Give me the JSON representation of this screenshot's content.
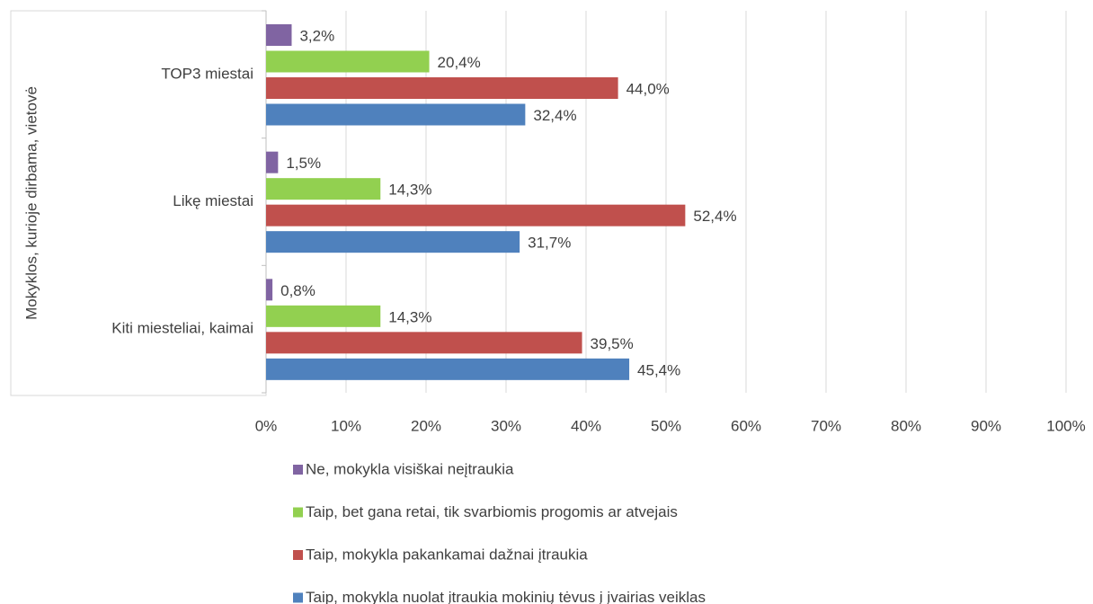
{
  "chart_data": {
    "type": "bar",
    "orientation": "horizontal",
    "y_axis_label": "Mokyklos, kurioje dirbama, vietovė",
    "categories": [
      "TOP3 miestai",
      "Likę miestai",
      "Kiti miesteliai, kaimai"
    ],
    "series": [
      {
        "name": "Ne, mokykla visiškai neįtraukia",
        "color": "#8064a2",
        "values": [
          3.2,
          1.5,
          0.8
        ],
        "value_labels": [
          "3,2%",
          "1,5%",
          "0,8%"
        ]
      },
      {
        "name": "Taip, bet gana retai, tik svarbiomis progomis ar atvejais",
        "color": "#92d050",
        "values": [
          20.4,
          14.3,
          14.3
        ],
        "value_labels": [
          "20,4%",
          "14,3%",
          "14,3%"
        ]
      },
      {
        "name": "Taip, mokykla pakankamai dažnai įtraukia",
        "color": "#c0504d",
        "values": [
          44.0,
          52.4,
          39.5
        ],
        "value_labels": [
          "44,0%",
          "52,4%",
          "39,5%"
        ]
      },
      {
        "name": "Taip, mokykla nuolat įtraukia mokinių tėvus į įvairias veiklas",
        "color": "#4f81bd",
        "values": [
          32.4,
          31.7,
          45.4
        ],
        "value_labels": [
          "32,4%",
          "31,7%",
          "45,4%"
        ]
      }
    ],
    "xlim": [
      0,
      100
    ],
    "xticks": [
      {
        "value": 0,
        "label": "0%"
      },
      {
        "value": 10,
        "label": "10%"
      },
      {
        "value": 20,
        "label": "20%"
      },
      {
        "value": 30,
        "label": "30%"
      },
      {
        "value": 40,
        "label": "40%"
      },
      {
        "value": 50,
        "label": "50%"
      },
      {
        "value": 60,
        "label": "60%"
      },
      {
        "value": 70,
        "label": "70%"
      },
      {
        "value": 80,
        "label": "80%"
      },
      {
        "value": 90,
        "label": "90%"
      },
      {
        "value": 100,
        "label": "100%"
      }
    ],
    "grid": true,
    "legend": "bottom"
  }
}
